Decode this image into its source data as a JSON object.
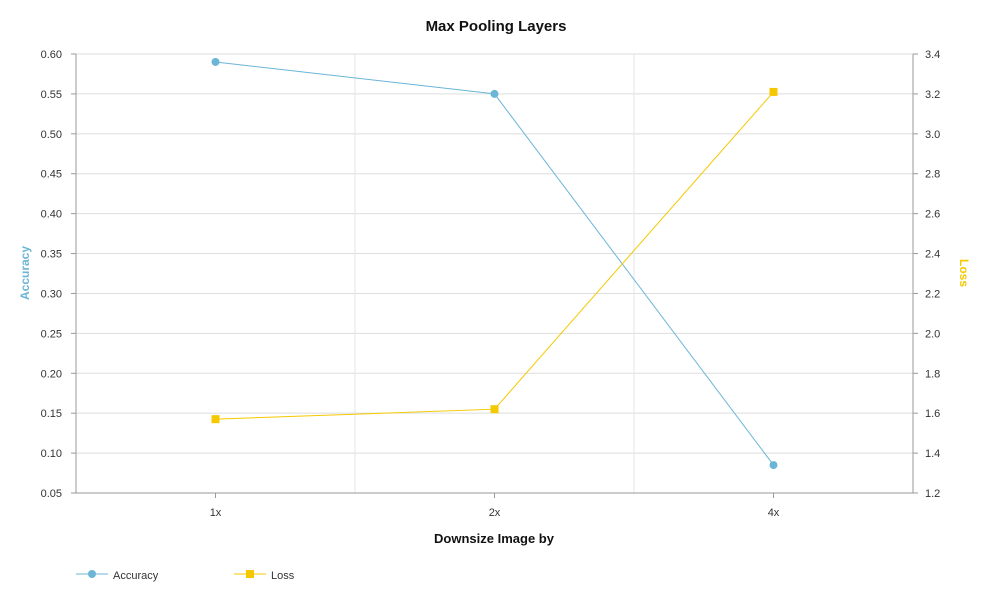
{
  "chart_data": {
    "type": "line",
    "title": "Max Pooling Layers",
    "xlabel": "Downsize Image by",
    "categories": [
      "1x",
      "2x",
      "4x"
    ],
    "y_left": {
      "label": "Accuracy",
      "ylim": [
        0.05,
        0.6
      ],
      "ticks": [
        "0.05",
        "0.10",
        "0.15",
        "0.20",
        "0.25",
        "0.30",
        "0.35",
        "0.40",
        "0.45",
        "0.50",
        "0.55",
        "0.60"
      ]
    },
    "y_right": {
      "label": "Loss",
      "ylim": [
        1.2,
        3.4
      ],
      "ticks": [
        "1.2",
        "1.4",
        "1.6",
        "1.8",
        "2.0",
        "2.2",
        "2.4",
        "2.6",
        "2.8",
        "3.0",
        "3.2",
        "3.4"
      ]
    },
    "series": [
      {
        "name": "Accuracy",
        "axis": "left",
        "marker": "circle",
        "color": "#6bb5d6",
        "values": [
          0.59,
          0.55,
          0.085
        ]
      },
      {
        "name": "Loss",
        "axis": "right",
        "marker": "square",
        "color": "#f5c800",
        "values": [
          1.57,
          1.62,
          3.21
        ]
      }
    ],
    "grid": true,
    "legend_position": "bottom-left"
  }
}
